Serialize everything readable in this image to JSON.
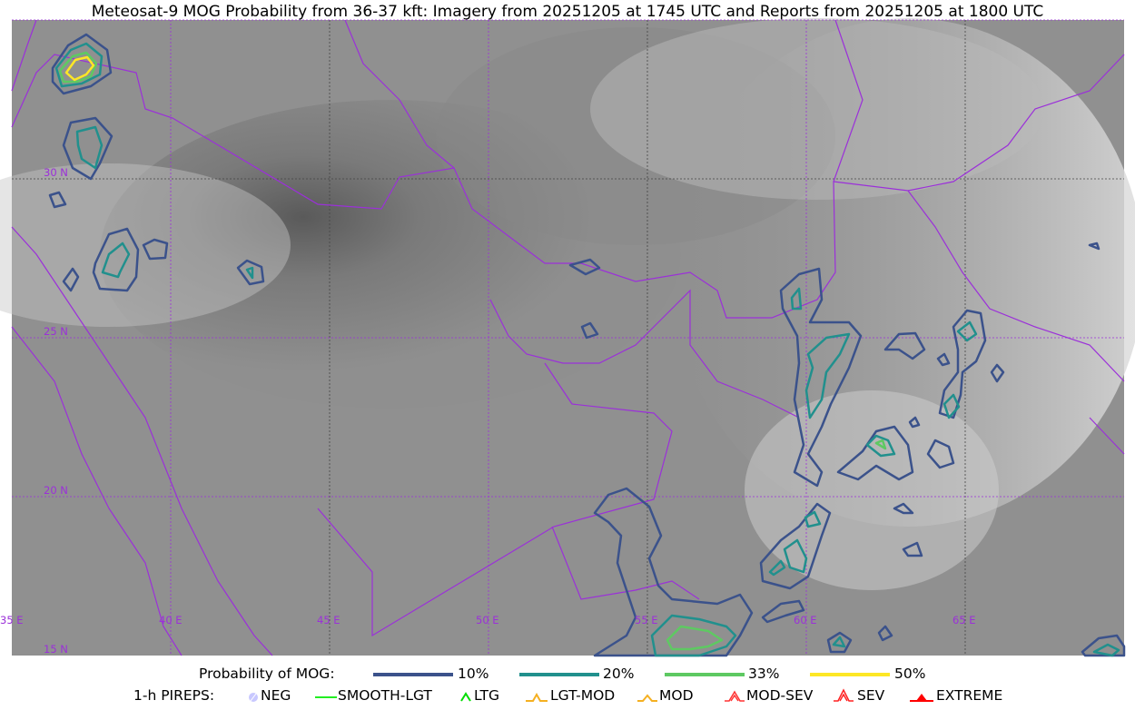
{
  "title": "Meteosat-9 MOG Probability from 36-37 kft: Imagery from 20251205 at 1745 UTC and Reports from 20251205 at 1800 UTC",
  "axes": {
    "lat_labels": [
      "30 N",
      "25 N",
      "20 N",
      "15 N"
    ],
    "lon_labels": [
      "35 E",
      "40 E",
      "45 E",
      "50 E",
      "55 E",
      "60 E",
      "65 E"
    ]
  },
  "colors": {
    "p10": "#3b528b",
    "p20": "#21908d",
    "p33": "#5ec962",
    "p50": "#fde725",
    "borders": "#9b30d9"
  },
  "legend": {
    "probability_label": "Probability of MOG:",
    "probability_items": [
      {
        "label": "10%",
        "color": "#3b528b"
      },
      {
        "label": "20%",
        "color": "#21908d"
      },
      {
        "label": "33%",
        "color": "#5ec962"
      },
      {
        "label": "50%",
        "color": "#fde725"
      }
    ],
    "pireps_label": "1-h PIREPS:",
    "pireps_items": [
      {
        "label": "NEG",
        "icon": "neg-circle-icon",
        "color": "#c8c8ff"
      },
      {
        "label": "SMOOTH-LGT",
        "icon": "line-icon",
        "color": "#22ee22"
      },
      {
        "label": "LTG",
        "icon": "caret-icon",
        "color": "#00dd00"
      },
      {
        "label": "LGT-MOD",
        "icon": "hat-icon",
        "color": "#f5b021"
      },
      {
        "label": "MOD",
        "icon": "caret-icon",
        "color": "#f5b021"
      },
      {
        "label": "MOD-SEV",
        "icon": "double-caret-icon",
        "color": "#ff3333"
      },
      {
        "label": "SEV",
        "icon": "double-caret-icon",
        "color": "#ff2222"
      },
      {
        "label": "EXTREME",
        "icon": "filled-triangle-icon",
        "color": "#ff0000"
      }
    ]
  }
}
